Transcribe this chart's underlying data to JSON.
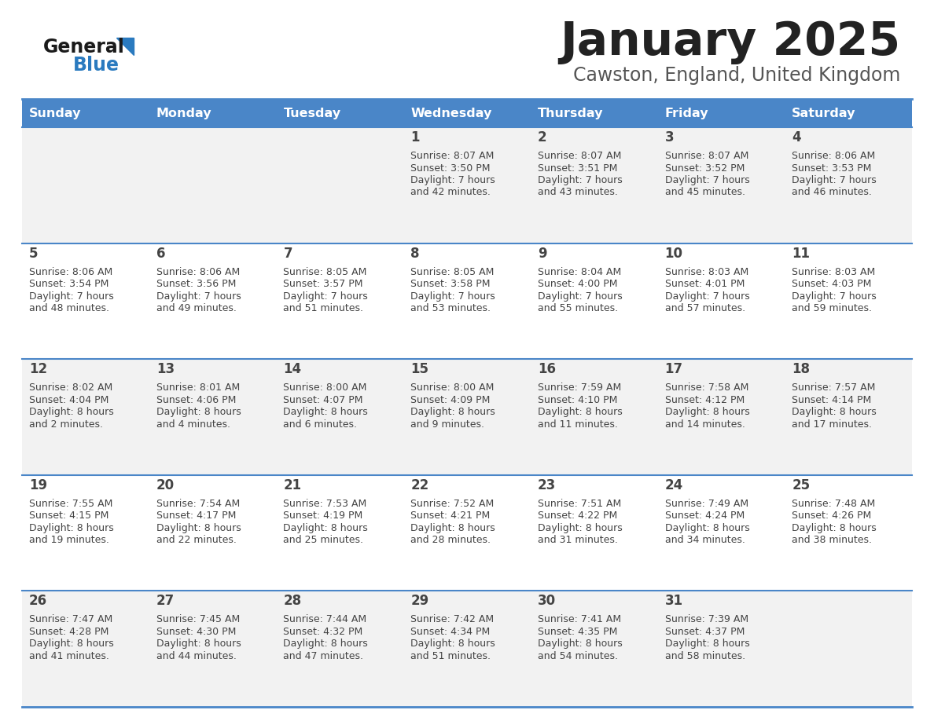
{
  "title": "January 2025",
  "subtitle": "Cawston, England, United Kingdom",
  "days_of_week": [
    "Sunday",
    "Monday",
    "Tuesday",
    "Wednesday",
    "Thursday",
    "Friday",
    "Saturday"
  ],
  "header_bg": "#4a86c8",
  "header_text": "#ffffff",
  "row_bg_odd": "#f2f2f2",
  "row_bg_even": "#ffffff",
  "cell_text": "#444444",
  "border_color": "#4a86c8",
  "title_color": "#222222",
  "subtitle_color": "#555555",
  "logo_general_color": "#1a1a1a",
  "logo_blue_color": "#2a7abf",
  "calendar_data": [
    [
      {
        "day": "",
        "sunrise": "",
        "sunset": "",
        "daylight": ""
      },
      {
        "day": "",
        "sunrise": "",
        "sunset": "",
        "daylight": ""
      },
      {
        "day": "",
        "sunrise": "",
        "sunset": "",
        "daylight": ""
      },
      {
        "day": "1",
        "sunrise": "8:07 AM",
        "sunset": "3:50 PM",
        "daylight": "7 hours and 42 minutes."
      },
      {
        "day": "2",
        "sunrise": "8:07 AM",
        "sunset": "3:51 PM",
        "daylight": "7 hours and 43 minutes."
      },
      {
        "day": "3",
        "sunrise": "8:07 AM",
        "sunset": "3:52 PM",
        "daylight": "7 hours and 45 minutes."
      },
      {
        "day": "4",
        "sunrise": "8:06 AM",
        "sunset": "3:53 PM",
        "daylight": "7 hours and 46 minutes."
      }
    ],
    [
      {
        "day": "5",
        "sunrise": "8:06 AM",
        "sunset": "3:54 PM",
        "daylight": "7 hours and 48 minutes."
      },
      {
        "day": "6",
        "sunrise": "8:06 AM",
        "sunset": "3:56 PM",
        "daylight": "7 hours and 49 minutes."
      },
      {
        "day": "7",
        "sunrise": "8:05 AM",
        "sunset": "3:57 PM",
        "daylight": "7 hours and 51 minutes."
      },
      {
        "day": "8",
        "sunrise": "8:05 AM",
        "sunset": "3:58 PM",
        "daylight": "7 hours and 53 minutes."
      },
      {
        "day": "9",
        "sunrise": "8:04 AM",
        "sunset": "4:00 PM",
        "daylight": "7 hours and 55 minutes."
      },
      {
        "day": "10",
        "sunrise": "8:03 AM",
        "sunset": "4:01 PM",
        "daylight": "7 hours and 57 minutes."
      },
      {
        "day": "11",
        "sunrise": "8:03 AM",
        "sunset": "4:03 PM",
        "daylight": "7 hours and 59 minutes."
      }
    ],
    [
      {
        "day": "12",
        "sunrise": "8:02 AM",
        "sunset": "4:04 PM",
        "daylight": "8 hours and 2 minutes."
      },
      {
        "day": "13",
        "sunrise": "8:01 AM",
        "sunset": "4:06 PM",
        "daylight": "8 hours and 4 minutes."
      },
      {
        "day": "14",
        "sunrise": "8:00 AM",
        "sunset": "4:07 PM",
        "daylight": "8 hours and 6 minutes."
      },
      {
        "day": "15",
        "sunrise": "8:00 AM",
        "sunset": "4:09 PM",
        "daylight": "8 hours and 9 minutes."
      },
      {
        "day": "16",
        "sunrise": "7:59 AM",
        "sunset": "4:10 PM",
        "daylight": "8 hours and 11 minutes."
      },
      {
        "day": "17",
        "sunrise": "7:58 AM",
        "sunset": "4:12 PM",
        "daylight": "8 hours and 14 minutes."
      },
      {
        "day": "18",
        "sunrise": "7:57 AM",
        "sunset": "4:14 PM",
        "daylight": "8 hours and 17 minutes."
      }
    ],
    [
      {
        "day": "19",
        "sunrise": "7:55 AM",
        "sunset": "4:15 PM",
        "daylight": "8 hours and 19 minutes."
      },
      {
        "day": "20",
        "sunrise": "7:54 AM",
        "sunset": "4:17 PM",
        "daylight": "8 hours and 22 minutes."
      },
      {
        "day": "21",
        "sunrise": "7:53 AM",
        "sunset": "4:19 PM",
        "daylight": "8 hours and 25 minutes."
      },
      {
        "day": "22",
        "sunrise": "7:52 AM",
        "sunset": "4:21 PM",
        "daylight": "8 hours and 28 minutes."
      },
      {
        "day": "23",
        "sunrise": "7:51 AM",
        "sunset": "4:22 PM",
        "daylight": "8 hours and 31 minutes."
      },
      {
        "day": "24",
        "sunrise": "7:49 AM",
        "sunset": "4:24 PM",
        "daylight": "8 hours and 34 minutes."
      },
      {
        "day": "25",
        "sunrise": "7:48 AM",
        "sunset": "4:26 PM",
        "daylight": "8 hours and 38 minutes."
      }
    ],
    [
      {
        "day": "26",
        "sunrise": "7:47 AM",
        "sunset": "4:28 PM",
        "daylight": "8 hours and 41 minutes."
      },
      {
        "day": "27",
        "sunrise": "7:45 AM",
        "sunset": "4:30 PM",
        "daylight": "8 hours and 44 minutes."
      },
      {
        "day": "28",
        "sunrise": "7:44 AM",
        "sunset": "4:32 PM",
        "daylight": "8 hours and 47 minutes."
      },
      {
        "day": "29",
        "sunrise": "7:42 AM",
        "sunset": "4:34 PM",
        "daylight": "8 hours and 51 minutes."
      },
      {
        "day": "30",
        "sunrise": "7:41 AM",
        "sunset": "4:35 PM",
        "daylight": "8 hours and 54 minutes."
      },
      {
        "day": "31",
        "sunrise": "7:39 AM",
        "sunset": "4:37 PM",
        "daylight": "8 hours and 58 minutes."
      },
      {
        "day": "",
        "sunrise": "",
        "sunset": "",
        "daylight": ""
      }
    ]
  ]
}
